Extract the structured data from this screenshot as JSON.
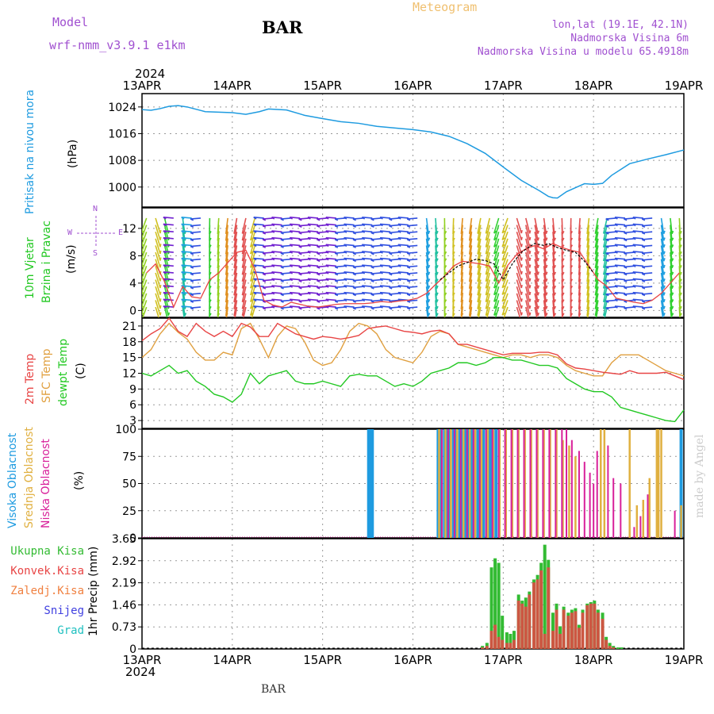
{
  "header": {
    "model_label": "Model",
    "model_name": "wrf-nmm_v3.9.1  e1km",
    "station": "BAR",
    "app_title": "Meteogram",
    "coords": "lon,lat (19.1E, 42.1N)",
    "elevation": "Nadmorska Visina 6m",
    "model_elevation": "Nadmorska Visina u modelu 65.4918m",
    "footer_station": "BAR",
    "watermark": "made by Angel"
  },
  "colors": {
    "pressure": "#1e9be0",
    "temp2m": "#e84545",
    "sfc_temp": "#e0a040",
    "dewpt": "#22c822",
    "high_cloud": "#1e9be0",
    "mid_cloud": "#e0b040",
    "low_cloud": "#d8209a",
    "total_precip": "#33bb33",
    "conv_precip": "#e84545",
    "purple_text": "#a050d0",
    "title_orange": "#f0c070"
  },
  "time_axis": {
    "year": "2024",
    "ticks": [
      "13APR",
      "14APR",
      "15APR",
      "16APR",
      "17APR",
      "18APR",
      "19APR"
    ]
  },
  "compass": {
    "n": "N",
    "s": "S",
    "w": "W",
    "e": "E"
  },
  "legend": {
    "pressure_name": "Pritisak na nivou mora",
    "pressure_unit": "(hPa)",
    "wind_name": "10m Vjetar",
    "wind_name2": "Brzina i Pravac",
    "wind_unit": "(m/s)",
    "temp_2m": "2m Temp",
    "temp_sfc": "SFC Temp",
    "temp_dew": "dewpt Temp",
    "temp_unit": "(C)",
    "cloud_high": "Visoka Oblacnost",
    "cloud_mid": "Srednja Oblacnost",
    "cloud_low": "Niska Oblacnost",
    "cloud_unit": "(%)",
    "precip_total": "Ukupna Kisa",
    "precip_conv": "Konvek.Kisa",
    "precip_frz": "Zaledj.Kisa",
    "precip_snow": "Snijeg",
    "precip_grad": "Grad",
    "precip_unit": "1hr Precip (mm)"
  },
  "chart_data": [
    {
      "type": "line",
      "name": "pressure",
      "yticks": [
        "1024",
        "1016",
        "1008",
        "1000"
      ],
      "ylim": [
        994,
        1028
      ],
      "x_days": [
        0,
        0.1,
        0.2,
        0.3,
        0.4,
        0.5,
        0.7,
        1.0,
        1.15,
        1.3,
        1.4,
        1.6,
        1.8,
        2.0,
        2.2,
        2.4,
        2.6,
        3.0,
        3.2,
        3.4,
        3.6,
        3.8,
        4.0,
        4.2,
        4.4,
        4.5,
        4.55,
        4.6,
        4.7,
        4.8,
        4.9,
        5.0,
        5.1,
        5.2,
        5.4,
        5.6,
        5.8,
        6.0
      ],
      "values": [
        1023.2,
        1023.0,
        1023.5,
        1024.2,
        1024.4,
        1024.0,
        1022.6,
        1022.3,
        1021.8,
        1022.6,
        1023.4,
        1023.1,
        1021.5,
        1020.5,
        1019.6,
        1019.1,
        1018.2,
        1017.2,
        1016.5,
        1015.2,
        1013.0,
        1010.1,
        1006.0,
        1002.0,
        998.9,
        997.2,
        996.8,
        996.7,
        998.6,
        999.8,
        1001.0,
        1000.8,
        1001.1,
        1003.5,
        1007.0,
        1008.4,
        1009.7,
        1011.1
      ],
      "grid": true
    },
    {
      "type": "scatter",
      "name": "wind_10m",
      "yticks": [
        "12",
        "8",
        "4",
        "0"
      ],
      "ylim": [
        -1,
        15
      ],
      "x_days": [
        0.05,
        0.15,
        0.25,
        0.35,
        0.45,
        0.55,
        0.65,
        0.75,
        0.85,
        0.95,
        1.05,
        1.15,
        1.25,
        1.35,
        1.45,
        1.55,
        1.65,
        1.75,
        1.85,
        1.95,
        2.05,
        2.15,
        2.25,
        2.35,
        2.45,
        2.55,
        2.65,
        2.75,
        2.85,
        2.95,
        3.05,
        3.15,
        3.25,
        3.35,
        3.45,
        3.55,
        3.65,
        3.75,
        3.85,
        3.95,
        4.05,
        4.15,
        4.25,
        4.35,
        4.45,
        4.55,
        4.65,
        4.75,
        4.85,
        4.95,
        5.05,
        5.15,
        5.25,
        5.35,
        5.45,
        5.55,
        5.65,
        5.75,
        5.85,
        5.95
      ],
      "speed": [
        5.5,
        6.8,
        4.2,
        0.5,
        3.5,
        2.0,
        1.8,
        4.5,
        5.5,
        7.0,
        8.5,
        8.8,
        6.0,
        1.5,
        0.8,
        0.5,
        1.2,
        0.9,
        0.6,
        0.5,
        0.7,
        0.9,
        1.0,
        1.0,
        1.0,
        1.1,
        1.3,
        1.2,
        1.4,
        1.5,
        1.8,
        2.5,
        3.8,
        5.0,
        6.5,
        7.2,
        7.0,
        6.8,
        6.5,
        4.0,
        6.6,
        8.2,
        9.0,
        9.5,
        9.0,
        9.8,
        9.2,
        8.8,
        8.5,
        6.5,
        4.5,
        3.5,
        1.8,
        1.5,
        1.2,
        1.0,
        1.5,
        2.5,
        4.0,
        5.5
      ],
      "speed_smooth_x": [
        3.3,
        3.5,
        3.7,
        3.8,
        3.9,
        4.0,
        4.1,
        4.2,
        4.3,
        4.35,
        4.45,
        4.5,
        4.6,
        4.7,
        4.8,
        4.9,
        5.0
      ],
      "speed_smooth": [
        4.5,
        6.5,
        7.5,
        7.3,
        6.8,
        4.5,
        6.8,
        8.5,
        9.4,
        9.8,
        9.5,
        9.8,
        9.2,
        8.8,
        8.5,
        7.2,
        5.5
      ],
      "grid": true
    },
    {
      "type": "line",
      "name": "temperature",
      "yticks": [
        "21",
        "18",
        "15",
        "12",
        "9",
        "6",
        "3"
      ],
      "ylim": [
        1.5,
        22.5
      ],
      "x_days": [
        0,
        0.1,
        0.2,
        0.3,
        0.4,
        0.5,
        0.6,
        0.7,
        0.8,
        0.9,
        1.0,
        1.1,
        1.2,
        1.3,
        1.4,
        1.5,
        1.6,
        1.7,
        1.8,
        1.9,
        2.0,
        2.1,
        2.2,
        2.3,
        2.4,
        2.5,
        2.6,
        2.7,
        2.8,
        2.9,
        3.0,
        3.1,
        3.2,
        3.3,
        3.4,
        3.5,
        3.6,
        3.7,
        3.8,
        3.9,
        4.0,
        4.1,
        4.2,
        4.3,
        4.4,
        4.5,
        4.6,
        4.7,
        4.8,
        4.9,
        5.0,
        5.1,
        5.2,
        5.3,
        5.4,
        5.5,
        5.6,
        5.7,
        5.8,
        5.9,
        6.0
      ],
      "series": [
        {
          "name": "2m Temp",
          "values": [
            18.2,
            19.5,
            20.5,
            22.5,
            20.0,
            19.0,
            21.5,
            20.0,
            19.0,
            20.0,
            19.0,
            21.5,
            20.8,
            19.0,
            19.0,
            21.5,
            20.5,
            19.5,
            19.0,
            18.5,
            19.0,
            18.8,
            18.5,
            18.8,
            19.2,
            20.5,
            20.8,
            21.0,
            20.5,
            20.0,
            19.8,
            19.5,
            20.0,
            20.2,
            19.5,
            17.5,
            17.5,
            17.0,
            16.5,
            16.0,
            15.5,
            15.8,
            15.8,
            15.8,
            16.0,
            16.0,
            15.5,
            13.8,
            13.0,
            12.8,
            12.5,
            12.2,
            12.0,
            11.8,
            12.5,
            12.0,
            12.0,
            12.0,
            12.2,
            11.5,
            10.8
          ]
        },
        {
          "name": "SFC Temp",
          "values": [
            15.0,
            16.5,
            19.5,
            21.5,
            19.8,
            18.5,
            16.0,
            14.5,
            14.5,
            16.0,
            15.5,
            20.5,
            21.5,
            18.5,
            15.0,
            19.0,
            21.0,
            20.5,
            18.0,
            14.5,
            13.5,
            14.0,
            16.5,
            20.0,
            21.5,
            21.0,
            19.5,
            16.5,
            15.0,
            14.5,
            14.0,
            16.0,
            19.0,
            20.0,
            19.5,
            17.5,
            17.0,
            16.5,
            16.0,
            15.5,
            15.0,
            15.5,
            15.5,
            15.0,
            15.5,
            15.5,
            15.0,
            13.5,
            12.5,
            12.0,
            11.5,
            11.5,
            14.0,
            15.5,
            15.5,
            15.5,
            14.5,
            13.5,
            12.5,
            12.0,
            11.5
          ]
        },
        {
          "name": "dewpt Temp",
          "values": [
            12.0,
            11.5,
            12.5,
            13.5,
            12.0,
            12.5,
            10.5,
            9.5,
            8.0,
            7.5,
            6.5,
            8.0,
            12.0,
            10.0,
            11.5,
            12.0,
            12.5,
            10.5,
            10.0,
            10.0,
            10.5,
            10.0,
            9.5,
            11.5,
            11.8,
            11.5,
            11.5,
            10.5,
            9.5,
            10.0,
            9.5,
            10.5,
            12.0,
            12.5,
            13.0,
            14.0,
            14.0,
            13.5,
            14.0,
            15.0,
            15.0,
            14.5,
            14.5,
            14.0,
            13.5,
            13.5,
            13.0,
            11.0,
            10.0,
            9.0,
            8.5,
            8.5,
            7.5,
            5.5,
            5.0,
            4.5,
            4.0,
            3.5,
            3.0,
            2.8,
            5.0
          ]
        }
      ],
      "grid": true
    },
    {
      "type": "bar",
      "name": "cloud_cover",
      "yticks": [
        "100",
        "75",
        "50",
        "25",
        "0"
      ],
      "ylim": [
        0,
        100
      ],
      "series": [
        {
          "name": "Visoka Oblacnost",
          "x_days": [
            2.51,
            2.53,
            2.55,
            3.28,
            3.31,
            3.35,
            3.38,
            3.41,
            3.45,
            3.48,
            3.52,
            3.55,
            3.58,
            3.62,
            3.65,
            3.68,
            3.72,
            3.75,
            3.78,
            3.82,
            3.85,
            3.88,
            3.92,
            5.97
          ],
          "values": [
            100,
            100,
            100,
            100,
            100,
            100,
            100,
            100,
            100,
            100,
            100,
            100,
            100,
            100,
            100,
            100,
            100,
            100,
            100,
            100,
            100,
            100,
            100,
            100
          ]
        },
        {
          "name": "Srednja Oblacnost",
          "x_days": [
            3.29,
            3.36,
            3.42,
            3.49,
            3.56,
            3.63,
            3.69,
            3.76,
            3.83,
            3.89,
            3.96,
            4.03,
            4.1,
            4.17,
            4.24,
            4.31,
            4.38,
            4.45,
            4.52,
            4.59,
            4.66,
            4.73,
            4.8,
            5.08,
            5.12,
            5.4,
            5.48,
            5.55,
            5.62,
            5.7,
            5.72,
            5.75,
            5.97
          ],
          "values": [
            100,
            100,
            100,
            100,
            100,
            100,
            100,
            100,
            100,
            100,
            100,
            100,
            100,
            100,
            100,
            100,
            100,
            100,
            100,
            100,
            90,
            85,
            75,
            100,
            100,
            100,
            30,
            35,
            55,
            100,
            100,
            100,
            30
          ]
        },
        {
          "name": "Niska Oblacnost",
          "x_days": [
            3.32,
            3.39,
            3.46,
            3.53,
            3.6,
            3.67,
            3.74,
            3.81,
            3.88,
            3.95,
            4.02,
            4.09,
            4.16,
            4.23,
            4.3,
            4.37,
            4.44,
            4.51,
            4.58,
            4.65,
            4.7,
            4.76,
            4.84,
            4.9,
            4.96,
            5.0,
            5.04,
            5.16,
            5.22,
            5.3,
            5.45,
            5.52,
            5.6,
            5.9
          ],
          "values": [
            100,
            100,
            100,
            100,
            100,
            100,
            100,
            100,
            100,
            100,
            100,
            100,
            100,
            100,
            100,
            100,
            100,
            100,
            100,
            100,
            100,
            90,
            80,
            70,
            60,
            50,
            80,
            85,
            55,
            50,
            10,
            20,
            40,
            25
          ]
        }
      ],
      "grid": true
    },
    {
      "type": "bar",
      "name": "precipitation",
      "yticks": [
        "3.65",
        "2.92",
        "2.19",
        "1.46",
        "0.73",
        "0"
      ],
      "ylim": [
        0,
        3.65
      ],
      "x_days": [
        3.77,
        3.82,
        3.87,
        3.91,
        3.95,
        3.99,
        4.04,
        4.08,
        4.12,
        4.17,
        4.21,
        4.25,
        4.29,
        4.34,
        4.38,
        4.42,
        4.46,
        4.5,
        4.55,
        4.59,
        4.63,
        4.67,
        4.72,
        4.76,
        4.8,
        4.84,
        4.88,
        4.93,
        4.97,
        5.01,
        5.05,
        5.1,
        5.14,
        5.18,
        5.22,
        5.27,
        5.31
      ],
      "series": [
        {
          "name": "Ukupna Kisa",
          "values": [
            0.1,
            0.2,
            2.7,
            3.0,
            2.85,
            1.1,
            0.55,
            0.5,
            0.6,
            1.8,
            1.6,
            1.7,
            1.9,
            2.3,
            2.45,
            2.85,
            3.45,
            2.95,
            1.2,
            1.5,
            0.75,
            1.4,
            1.2,
            1.3,
            1.35,
            0.8,
            1.3,
            1.5,
            1.55,
            1.6,
            1.3,
            1.2,
            0.4,
            0.2,
            0.1,
            0.05,
            0.05
          ]
        },
        {
          "name": "Konvek.Kisa",
          "values": [
            0.05,
            0.1,
            0.6,
            0.8,
            0.4,
            0.3,
            0.2,
            0.2,
            0.3,
            1.6,
            1.5,
            1.4,
            1.8,
            2.2,
            2.3,
            2.6,
            0.5,
            2.7,
            0.6,
            1.3,
            0.5,
            1.3,
            1.1,
            1.2,
            1.25,
            0.7,
            1.2,
            1.45,
            1.5,
            1.5,
            1.2,
            1.0,
            0.3,
            0.1,
            0.05,
            0.0,
            0.0
          ]
        }
      ],
      "grid": true
    }
  ]
}
